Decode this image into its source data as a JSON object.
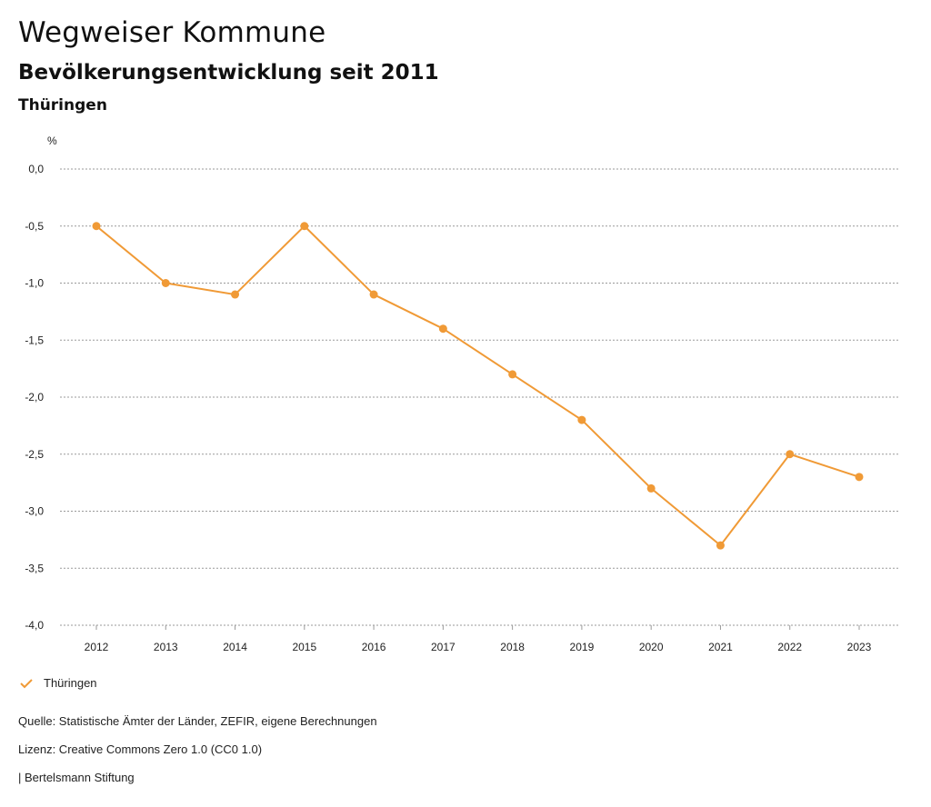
{
  "header": {
    "title": "Wegweiser Kommune",
    "subtitle": "Bevölkerungsentwicklung seit 2011",
    "region": "Thüringen"
  },
  "chart_data": {
    "type": "line",
    "title": "Bevölkerungsentwicklung seit 2011",
    "ylabel": "%",
    "xlabel": "",
    "ylim": [
      -4.0,
      0.0
    ],
    "yticks": [
      0.0,
      -0.5,
      -1.0,
      -1.5,
      -2.0,
      -2.5,
      -3.0,
      -3.5,
      -4.0
    ],
    "ytick_labels": [
      "0,0",
      "-0,5",
      "-1,0",
      "-1,5",
      "-2,0",
      "-2,5",
      "-3,0",
      "-3,5",
      "-4,0"
    ],
    "grid": true,
    "categories": [
      "2012",
      "2013",
      "2014",
      "2015",
      "2016",
      "2017",
      "2018",
      "2019",
      "2020",
      "2021",
      "2022",
      "2023"
    ],
    "series": [
      {
        "name": "Thüringen",
        "color": "#f09a36",
        "values": [
          -0.5,
          -1.0,
          -1.1,
          -0.5,
          -1.1,
          -1.4,
          -1.8,
          -2.2,
          -2.8,
          -3.3,
          -2.5,
          -2.7
        ]
      }
    ],
    "legend": "bottom-left"
  },
  "legend": {
    "label": "Thüringen",
    "icon": "check-mark-icon",
    "color": "#f09a36"
  },
  "footer": {
    "source": "Quelle: Statistische Ämter der Länder, ZEFIR, eigene Berechnungen",
    "license": "Lizenz: Creative Commons Zero 1.0 (CC0 1.0)",
    "publisher": "| Bertelsmann Stiftung"
  }
}
